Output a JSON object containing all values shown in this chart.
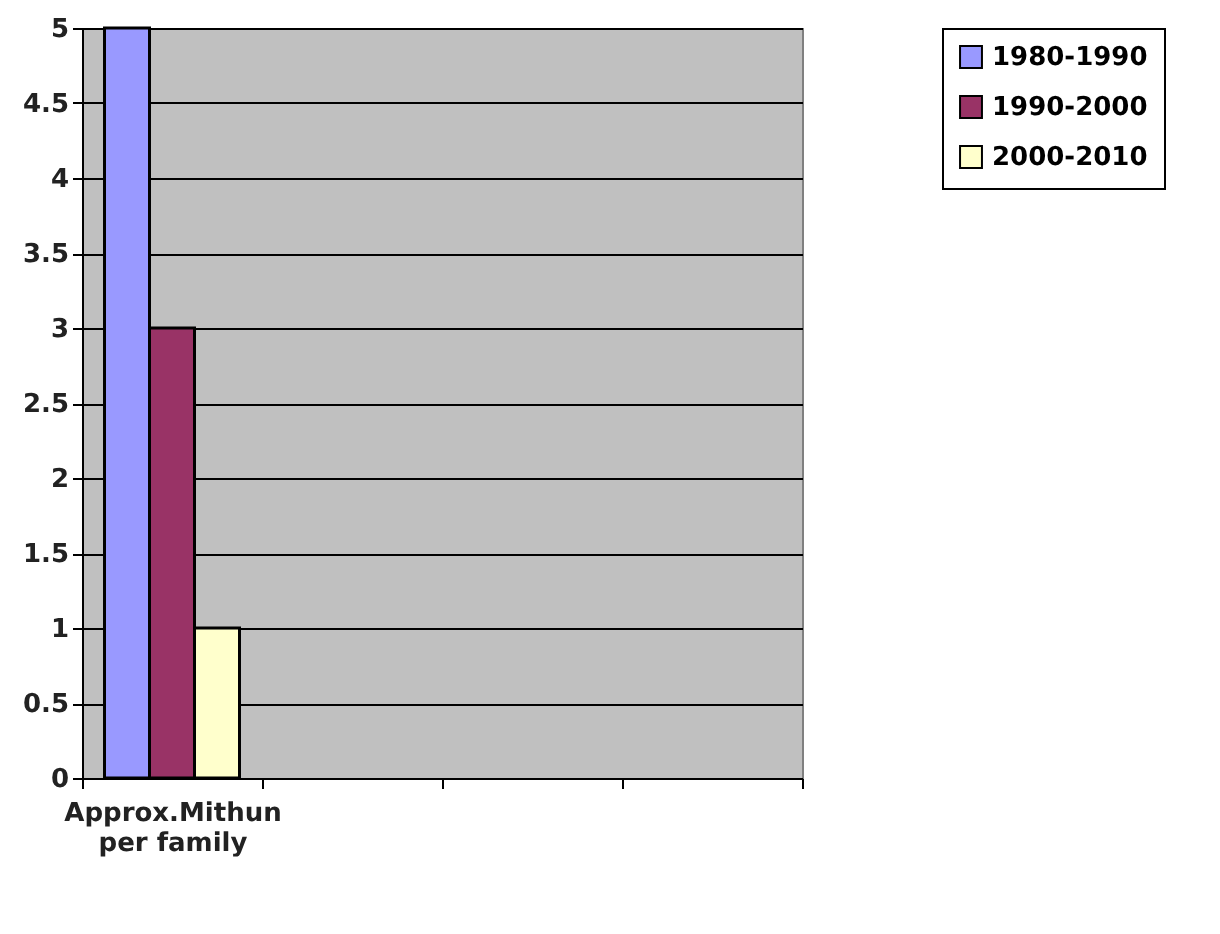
{
  "chart_data": {
    "type": "bar",
    "categories": [
      "Approx.Mithun per family",
      null,
      null,
      null
    ],
    "series": [
      {
        "name": "1980-1990",
        "color": "#9999ff",
        "values": [
          5,
          null,
          null,
          null
        ]
      },
      {
        "name": "1990-2000",
        "color": "#993366",
        "values": [
          3,
          null,
          null,
          null
        ]
      },
      {
        "name": "2000-2010",
        "color": "#ffffcc",
        "values": [
          1,
          null,
          null,
          null
        ]
      }
    ],
    "ylim": [
      0,
      5
    ],
    "yticks": [
      0,
      0.5,
      1,
      1.5,
      2,
      2.5,
      3,
      3.5,
      4,
      4.5,
      5
    ],
    "grid": "y",
    "legend": "right"
  }
}
